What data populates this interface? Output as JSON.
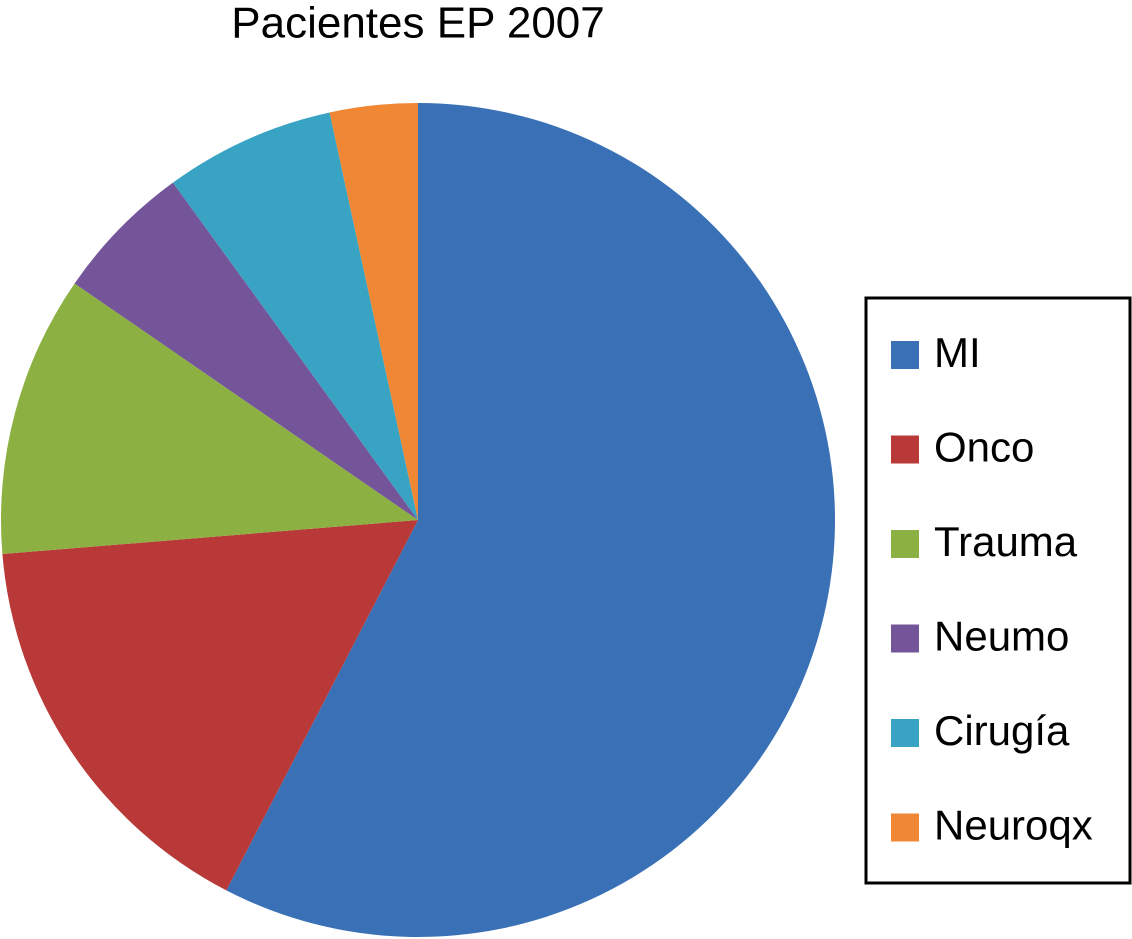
{
  "chart_data": {
    "type": "pie",
    "title": "Pacientes EP 2007",
    "categories": [
      "MI",
      "Onco",
      "Trauma",
      "Neumo",
      "Cirugía",
      "Neuroqx"
    ],
    "values": [
      57.6,
      16.1,
      10.9,
      5.4,
      6.6,
      3.4
    ],
    "colors": [
      "#3a70b5",
      "#b83937",
      "#8db043",
      "#74559a",
      "#38a3c3",
      "#ef8734"
    ],
    "legend": "right"
  }
}
